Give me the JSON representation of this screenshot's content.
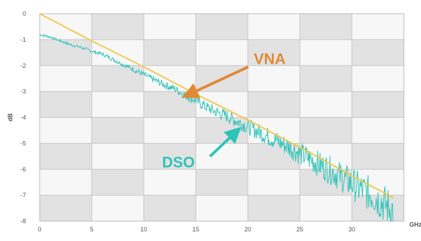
{
  "chart_data": {
    "type": "line",
    "title": "",
    "xlabel": "GHz",
    "ylabel": "dB",
    "xlim": [
      0,
      35
    ],
    "ylim": [
      -8,
      0
    ],
    "x_ticks": [
      0,
      5,
      10,
      15,
      20,
      25,
      30
    ],
    "y_ticks": [
      0,
      -1,
      -2,
      -3,
      -4,
      -5,
      -6,
      -7,
      -8
    ],
    "x_tick_labels": [
      "0",
      "5",
      "10",
      "15",
      "20",
      "25",
      "30"
    ],
    "y_tick_labels": [
      "0",
      "-1",
      "-2",
      "-3",
      "-4",
      "-5",
      "-6",
      "-7",
      "-8"
    ],
    "grid": true,
    "background": "checkerboard",
    "series": [
      {
        "name": "VNA",
        "color": "#f0c850",
        "x": [
          0,
          5,
          10,
          15,
          20,
          25,
          30,
          34
        ],
        "y": [
          0,
          -1.05,
          -2.05,
          -3.1,
          -4.1,
          -5.15,
          -6.25,
          -7.1
        ]
      },
      {
        "name": "DSO",
        "color": "#2ec4b8",
        "x": [
          0,
          1,
          2,
          3,
          4,
          5,
          6,
          7,
          8,
          9,
          10,
          11,
          12,
          13,
          14,
          15,
          16,
          17,
          18,
          19,
          20,
          21,
          22,
          23,
          24,
          25,
          26,
          27,
          28,
          29,
          30,
          31,
          32,
          33,
          34
        ],
        "y": [
          -0.8,
          -0.9,
          -1.05,
          -1.2,
          -1.3,
          -1.45,
          -1.55,
          -1.75,
          -1.95,
          -2.15,
          -2.35,
          -2.55,
          -2.75,
          -2.9,
          -3.15,
          -3.35,
          -3.6,
          -3.8,
          -3.95,
          -4.15,
          -4.35,
          -4.55,
          -4.75,
          -4.95,
          -5.15,
          -5.4,
          -5.6,
          -5.85,
          -6.05,
          -6.3,
          -6.55,
          -6.8,
          -7.0,
          -7.3,
          -7.6
        ]
      }
    ],
    "annotations": [
      {
        "text": "VNA",
        "color": "#e08a36",
        "points_to": {
          "x": 14,
          "y": -3.05
        }
      },
      {
        "text": "DSO",
        "color": "#2ec4b8",
        "points_to": {
          "x": 19,
          "y": -4.5
        }
      }
    ]
  }
}
